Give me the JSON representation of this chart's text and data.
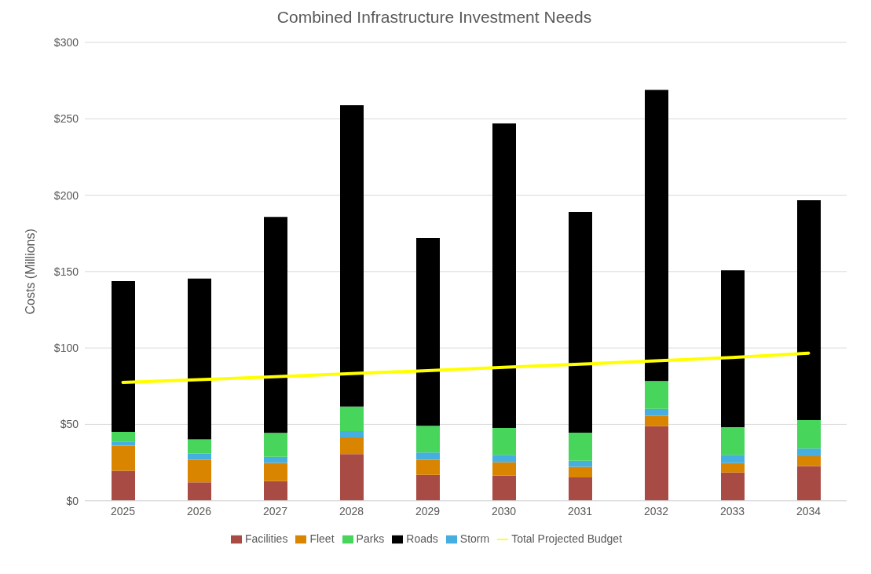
{
  "chart_data": {
    "type": "bar",
    "title": "Combined Infrastructure Investment Needs",
    "ylabel": "Costs (Millions)",
    "stacked": true,
    "categories": [
      "2025",
      "2026",
      "2027",
      "2028",
      "2029",
      "2030",
      "2031",
      "2032",
      "2033",
      "2034"
    ],
    "series": [
      {
        "name": "Facilities",
        "color": "#a94b45",
        "values": [
          19.6,
          12.1,
          12.8,
          30.5,
          16.9,
          16.4,
          15.3,
          48.8,
          18.5,
          22.7
        ]
      },
      {
        "name": "Fleet",
        "color": "#d98500",
        "values": [
          16.5,
          14.7,
          12.0,
          11.0,
          9.9,
          8.8,
          6.9,
          6.8,
          6.1,
          6.4
        ]
      },
      {
        "name": "Storm",
        "color": "#47aee0",
        "values": [
          2.7,
          4.0,
          4.0,
          4.1,
          4.8,
          4.8,
          4.0,
          4.5,
          5.4,
          5.0
        ]
      },
      {
        "name": "Parks",
        "color": "#47d55c",
        "values": [
          6.3,
          9.4,
          15.6,
          16.1,
          17.4,
          17.7,
          18.3,
          18.3,
          18.1,
          18.7
        ]
      },
      {
        "name": "Roads",
        "color": "#000000",
        "values": [
          98.7,
          105.2,
          141.4,
          197.2,
          123.0,
          199.2,
          144.5,
          190.5,
          102.7,
          143.9
        ]
      },
      {
        "name": "Total Projected Budget",
        "type": "line",
        "color": "#ffff00",
        "marker": "none",
        "values": [
          77.5,
          79.3,
          81.2,
          83.2,
          85.2,
          87.3,
          89.4,
          91.6,
          93.8,
          96.6
        ]
      }
    ],
    "ylim": [
      0,
      300
    ],
    "yticks": [
      {
        "value": 0,
        "label": "$0"
      },
      {
        "value": 50,
        "label": "$50"
      },
      {
        "value": 100,
        "label": "$100"
      },
      {
        "value": 150,
        "label": "$150"
      },
      {
        "value": 200,
        "label": "$200"
      },
      {
        "value": 250,
        "label": "$250"
      },
      {
        "value": 300,
        "label": "$300"
      }
    ],
    "grid": "y",
    "legend": "bottom"
  }
}
